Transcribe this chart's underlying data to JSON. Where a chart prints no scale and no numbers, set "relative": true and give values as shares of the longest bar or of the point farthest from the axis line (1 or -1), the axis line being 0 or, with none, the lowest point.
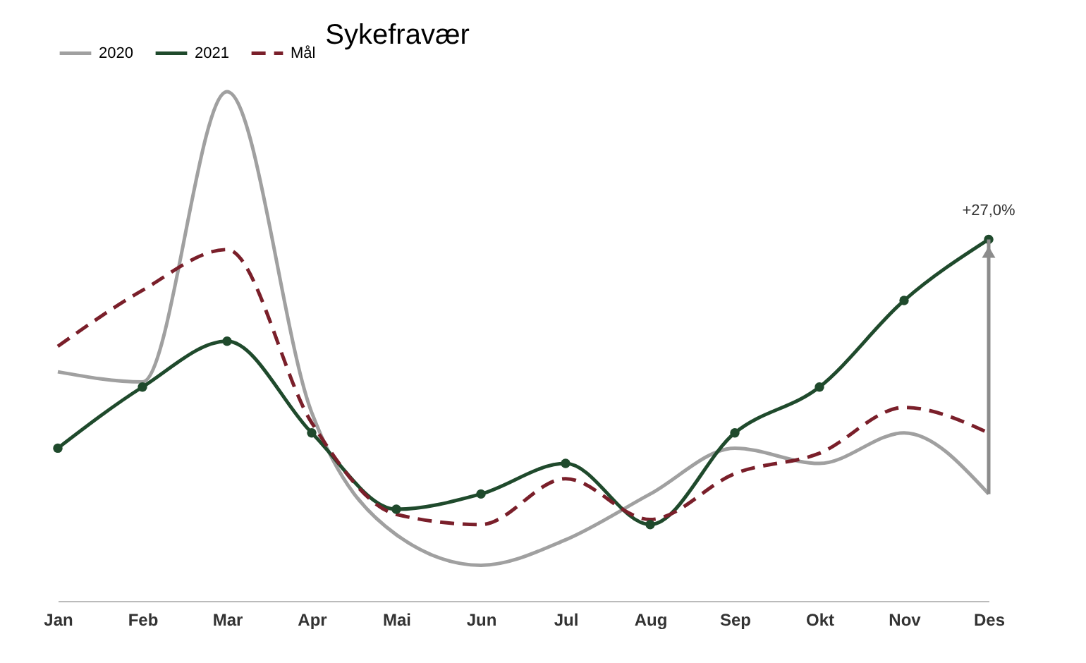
{
  "chart_data": {
    "type": "line",
    "title": "Sykefravær",
    "relative": true,
    "grid": false,
    "legend": "top left",
    "categories": [
      "Jan",
      "Feb",
      "Mar",
      "Apr",
      "Mai",
      "Jun",
      "Jul",
      "Aug",
      "Sep",
      "Okt",
      "Nov",
      "Des"
    ],
    "series": [
      {
        "name": "2020",
        "color": "#a0a0a0",
        "marker": "none",
        "line_style": "solid",
        "values": [
          0.45,
          0.43,
          1,
          0.37,
          0.13,
          0.07,
          0.12,
          0.21,
          0.3,
          0.27,
          0.33,
          0.21
        ]
      },
      {
        "name": "2021",
        "color": "#1f4a2c",
        "marker": "circle",
        "line_style": "solid",
        "values": [
          0.3,
          0.42,
          0.51,
          0.33,
          0.18,
          0.21,
          0.27,
          0.15,
          0.33,
          0.42,
          0.59,
          0.71
        ]
      },
      {
        "name": "Mål",
        "color": "#7a1f2a",
        "marker": "none",
        "line_style": "dashed",
        "values": [
          0.5,
          0.61,
          0.69,
          0.35,
          0.17,
          0.15,
          0.24,
          0.16,
          0.25,
          0.29,
          0.38,
          0.33
        ]
      }
    ],
    "annotations": [
      {
        "text": "+27,0%",
        "x": "Des",
        "y": 0.71
      }
    ]
  }
}
